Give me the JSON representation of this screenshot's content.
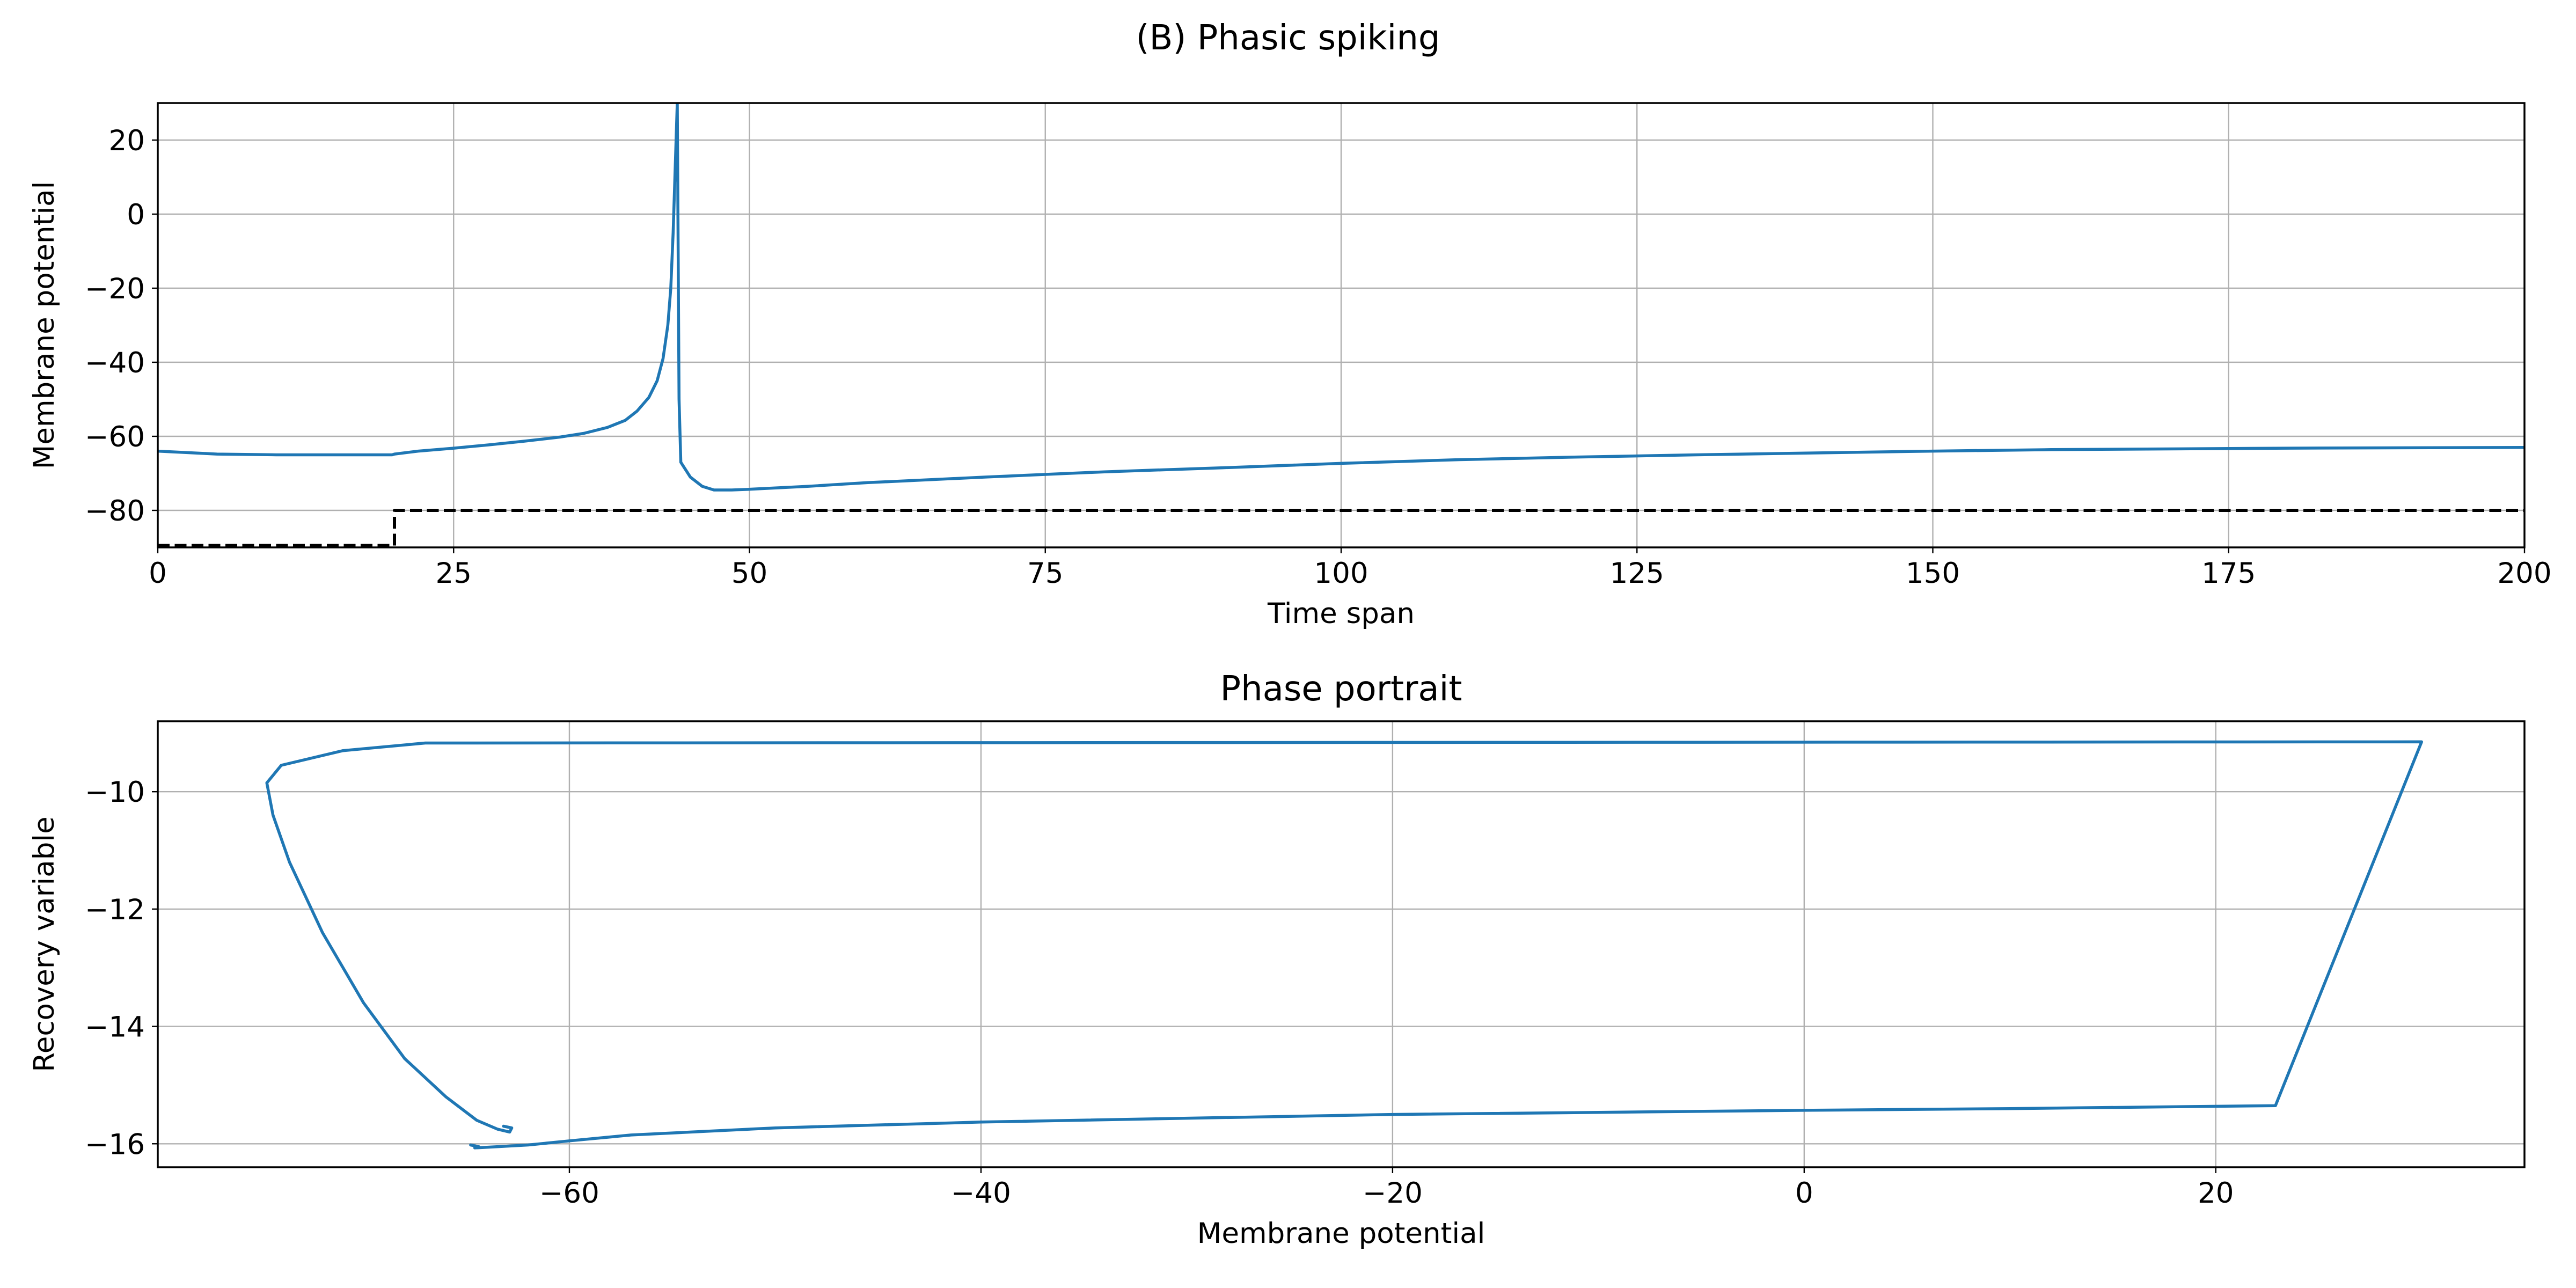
{
  "figure": {
    "suptitle": "(B) Phasic spiking"
  },
  "chart_data": [
    {
      "type": "line",
      "title": "",
      "xlabel": "Time span",
      "ylabel": "Membrane potential",
      "xlim": [
        0,
        200
      ],
      "ylim": [
        -90,
        30
      ],
      "xticks": [
        0,
        25,
        50,
        75,
        100,
        125,
        150,
        175,
        200
      ],
      "yticks": [
        -80,
        -60,
        -40,
        -20,
        0,
        20
      ],
      "grid": true,
      "series": [
        {
          "color": "#1f77b4",
          "style": "solid",
          "x": [
            0,
            5,
            10,
            15,
            19.8,
            20,
            22,
            25,
            28,
            31,
            34,
            36,
            38,
            39.5,
            40.5,
            41.5,
            42.2,
            42.7,
            43.1,
            43.35,
            43.55,
            43.75,
            43.9,
            44.05,
            44.2,
            45,
            46,
            47,
            48.5,
            50,
            55,
            60,
            70,
            80,
            90,
            100,
            110,
            120,
            130,
            140,
            150,
            160,
            170,
            180,
            190,
            200
          ],
          "y": [
            -64,
            -64.8,
            -65,
            -65,
            -65,
            -64.8,
            -64,
            -63.2,
            -62.3,
            -61.3,
            -60.2,
            -59.2,
            -57.6,
            -55.7,
            -53.2,
            -49.5,
            -45,
            -39,
            -30,
            -20,
            -5,
            15,
            30,
            -50,
            -67,
            -71,
            -73.5,
            -74.5,
            -74.5,
            -74.3,
            -73.5,
            -72.5,
            -71,
            -69.6,
            -68.5,
            -67.3,
            -66.3,
            -65.6,
            -65,
            -64.5,
            -64,
            -63.6,
            -63.4,
            -63.2,
            -63.1,
            -63
          ]
        },
        {
          "color": "#000000",
          "style": "dashed",
          "x": [
            0,
            20,
            20,
            200
          ],
          "y": [
            -89.5,
            -89.5,
            -80,
            -80
          ]
        }
      ]
    },
    {
      "type": "line",
      "title": "Phase portrait",
      "xlabel": "Membrane potential",
      "ylabel": "Recovery variable",
      "xlim": [
        -80,
        35
      ],
      "ylim": [
        -16.4,
        -8.8
      ],
      "xticks": [
        -60,
        -40,
        -20,
        0,
        20
      ],
      "yticks": [
        -16,
        -14,
        -12,
        -10
      ],
      "grid": true,
      "series": [
        {
          "color": "#1f77b4",
          "style": "solid",
          "x": [
            -64.8,
            -64.4,
            -64.6,
            -64,
            -62,
            -60,
            -57,
            -50,
            -40,
            -20,
            0,
            10,
            22.9,
            30,
            -20,
            -67,
            -71,
            -74,
            -74.7,
            -74.4,
            -73.6,
            -72,
            -70,
            -68,
            -66,
            -64.5,
            -63.5,
            -62.9,
            -62.8,
            -63.2
          ],
          "y": [
            -16.02,
            -16.05,
            -16.07,
            -16.06,
            -16.02,
            -15.95,
            -15.85,
            -15.73,
            -15.63,
            -15.5,
            -15.43,
            -15.4,
            -15.35,
            -9.15,
            -9.16,
            -9.17,
            -9.3,
            -9.55,
            -9.85,
            -10.4,
            -11.2,
            -12.4,
            -13.6,
            -14.55,
            -15.2,
            -15.6,
            -15.75,
            -15.8,
            -15.73,
            -15.7
          ]
        }
      ]
    }
  ]
}
